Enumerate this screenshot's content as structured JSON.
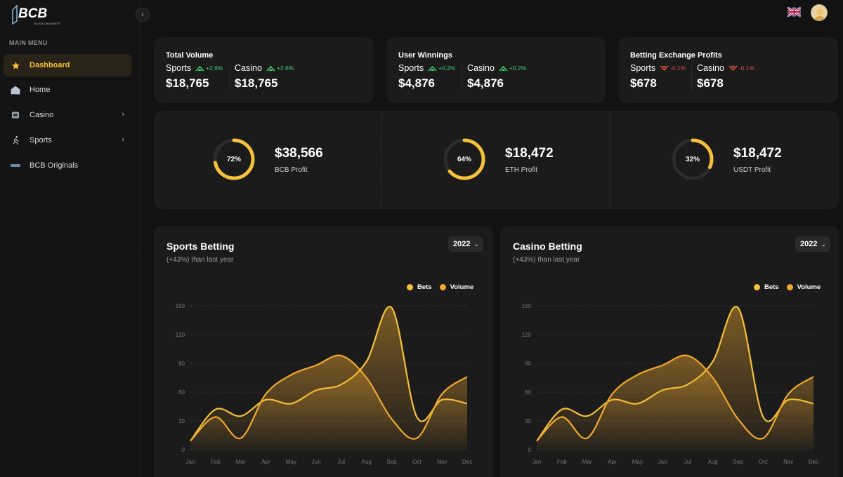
{
  "brand": {
    "logo_text": "BCB",
    "logo_tagline": "BLOCK CHAIN BETS"
  },
  "sidebar": {
    "menu_title": "MAIN MENU",
    "collapse_glyph": "‹",
    "items": [
      {
        "label": "Dashboard",
        "icon": "star-icon",
        "active": true
      },
      {
        "label": "Home",
        "icon": "home-icon"
      },
      {
        "label": "Casino",
        "icon": "slot-icon",
        "has_submenu": true
      },
      {
        "label": "Sports",
        "icon": "runner-icon",
        "has_submenu": true
      },
      {
        "label": "BCB Originals",
        "icon": "bcb-icon"
      }
    ],
    "chevron_glyph": "›"
  },
  "header": {
    "language_icon": "uk-flag-icon",
    "avatar_icon": "user-avatar-icon"
  },
  "stats": [
    {
      "title": "Total Volume",
      "cols": [
        {
          "label": "Sports",
          "change": "+2.6%",
          "direction": "up",
          "value": "$18,765"
        },
        {
          "label": "Casino",
          "change": "+2.6%",
          "direction": "up",
          "value": "$18,765"
        }
      ]
    },
    {
      "title": "User Winnings",
      "cols": [
        {
          "label": "Sports",
          "change": "+0.2%",
          "direction": "up",
          "value": "$4,876"
        },
        {
          "label": "Casino",
          "change": "+0.2%",
          "direction": "up",
          "value": "$4,876"
        }
      ]
    },
    {
      "title": "Betting Exchange Profits",
      "cols": [
        {
          "label": "Sports",
          "change": "-0.1%",
          "direction": "down",
          "value": "$678"
        },
        {
          "label": "Casino",
          "change": "-0.1%",
          "direction": "down",
          "value": "$678"
        }
      ]
    }
  ],
  "profits": [
    {
      "percent": 72,
      "percent_label": "72%",
      "value": "$38,566",
      "label": "BCB Profit"
    },
    {
      "percent": 64,
      "percent_label": "64%",
      "value": "$18,472",
      "label": "ETH Profit"
    },
    {
      "percent": 32,
      "percent_label": "32%",
      "value": "$18,472",
      "label": "USDT Profit"
    }
  ],
  "colors": {
    "accent": "#f5c13b",
    "volume": "#f0a830",
    "up": "#3ecf6b",
    "down": "#e0523c",
    "card": "#1b1b1b"
  },
  "charts": [
    {
      "title": "Sports Betting",
      "subtitle": "(+43%) than last year",
      "year": "2022"
    },
    {
      "title": "Casino Betting",
      "subtitle": "(+43%) than last year",
      "year": "2022"
    }
  ],
  "chart_data": [
    {
      "type": "area",
      "title": "Sports Betting",
      "categories": [
        "Jan",
        "Feb",
        "Mar",
        "Apr",
        "May",
        "Jun",
        "Jul",
        "Aug",
        "Sep",
        "Oct",
        "Nov",
        "Dec"
      ],
      "ylim": [
        0,
        150
      ],
      "yticks": [
        0,
        30,
        60,
        90,
        120,
        150
      ],
      "grid": true,
      "legend": "top-right",
      "series": [
        {
          "name": "Bets",
          "color": "#f5c13b",
          "values": [
            9,
            42,
            35,
            52,
            48,
            62,
            68,
            92,
            148,
            34,
            52,
            48
          ]
        },
        {
          "name": "Volume",
          "color": "#f0a830",
          "values": [
            9,
            34,
            12,
            58,
            78,
            88,
            98,
            75,
            32,
            12,
            58,
            76
          ]
        }
      ]
    },
    {
      "type": "area",
      "title": "Casino Betting",
      "categories": [
        "Jan",
        "Feb",
        "Mar",
        "Apr",
        "May",
        "Jun",
        "Jul",
        "Aug",
        "Sep",
        "Oct",
        "Nov",
        "Dec"
      ],
      "ylim": [
        0,
        150
      ],
      "yticks": [
        0,
        30,
        60,
        90,
        120,
        150
      ],
      "grid": true,
      "legend": "top-right",
      "series": [
        {
          "name": "Bets",
          "color": "#f5c13b",
          "values": [
            9,
            42,
            35,
            52,
            48,
            62,
            68,
            92,
            148,
            34,
            52,
            48
          ]
        },
        {
          "name": "Volume",
          "color": "#f0a830",
          "values": [
            9,
            34,
            12,
            58,
            78,
            88,
            98,
            75,
            32,
            12,
            58,
            76
          ]
        }
      ]
    }
  ]
}
